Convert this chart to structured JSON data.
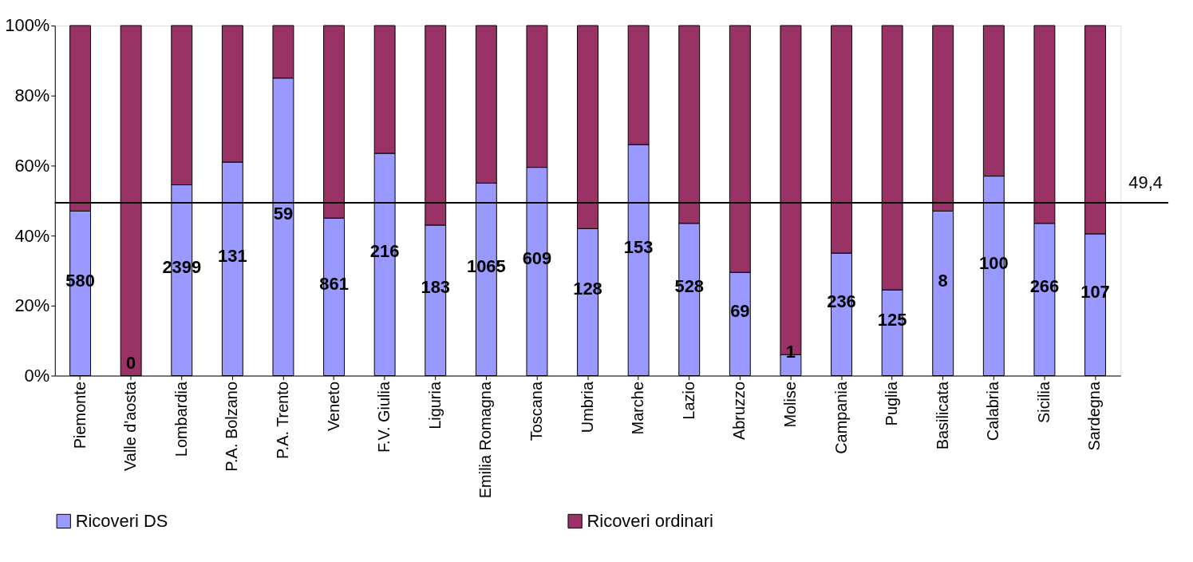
{
  "chart_data": {
    "type": "bar",
    "stacked": true,
    "categories": [
      "Piemonte",
      "Valle d'aosta",
      "Lombardia",
      "P.A. Bolzano",
      "P.A. Trento",
      "Veneto",
      "F.V. Giulia",
      "Liguria",
      "Emilia Romagna",
      "Toscana",
      "Umbria",
      "Marche",
      "Lazio",
      "Abruzzo",
      "Molise",
      "Campania",
      "Puglia",
      "Basilicata",
      "Calabria",
      "Sicilia",
      "Sardegna"
    ],
    "series": [
      {
        "name": "Ricoveri DS",
        "color": "#9999ff",
        "values": [
          47,
          0,
          54.5,
          61,
          85,
          45,
          63.5,
          43,
          55,
          59.5,
          42,
          66,
          43.5,
          29.5,
          6,
          35,
          24.5,
          47,
          57,
          43.5,
          40.5
        ]
      },
      {
        "name": "Ricoveri ordinari",
        "color": "#993366",
        "values": [
          53,
          100,
          45.5,
          39,
          15,
          55,
          36.5,
          57,
          45,
          40.5,
          58,
          34,
          56.5,
          70.5,
          94,
          65,
          75.5,
          53,
          43,
          56.5,
          59.5
        ]
      }
    ],
    "ylim": [
      0,
      100
    ],
    "yticks": [
      {
        "value": 0,
        "label": "0%"
      },
      {
        "value": 20,
        "label": "20%"
      },
      {
        "value": 40,
        "label": "40%"
      },
      {
        "value": 60,
        "label": "60%"
      },
      {
        "value": 80,
        "label": "80%"
      },
      {
        "value": 100,
        "label": "100%"
      }
    ],
    "ref_lines": [
      {
        "axis": "y",
        "value": 49.4,
        "label": "49,4",
        "color": "#000000"
      }
    ],
    "annotations": [
      "580",
      "0",
      "2399",
      "131",
      "59",
      "861",
      "216",
      "183",
      "1065",
      "609",
      "128",
      "153",
      "528",
      "69",
      "1",
      "236",
      "125",
      "8",
      "100",
      "266",
      "107"
    ],
    "legend": "bottom",
    "grid": false
  }
}
